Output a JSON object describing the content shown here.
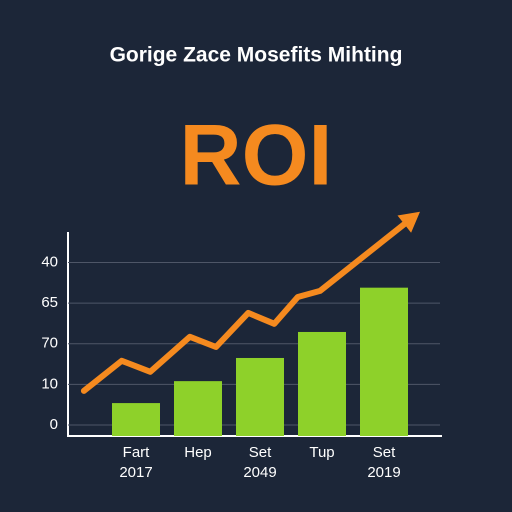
{
  "chart_data": {
    "type": "bar",
    "title": "Gorige Zace Mosefits Mihting",
    "subtitle": "ROI",
    "categories": [
      "Fart",
      "Hep",
      "Set",
      "Tup",
      "Set"
    ],
    "sublabels": [
      "2017",
      null,
      "2049",
      null,
      "2019"
    ],
    "values": [
      0.54,
      1.08,
      1.65,
      2.29,
      3.38
    ],
    "color": "#8ed12a",
    "ylim": [
      -0.27,
      4.75
    ],
    "yticks": [
      {
        "value": 0,
        "label": "0"
      },
      {
        "value": 1,
        "label": "10"
      },
      {
        "value": 2,
        "label": "70"
      },
      {
        "value": 3,
        "label": "65"
      },
      {
        "value": 4,
        "label": "40"
      }
    ],
    "grid": true,
    "trend": {
      "color": "#f58a1f",
      "x": [
        -0.84,
        -0.23,
        0.23,
        0.87,
        1.29,
        1.81,
        2.23,
        2.61,
        2.97,
        4.58
      ],
      "values": [
        0.84,
        1.58,
        1.31,
        2.17,
        1.92,
        2.76,
        2.49,
        3.15,
        3.3,
        5.25
      ]
    }
  }
}
